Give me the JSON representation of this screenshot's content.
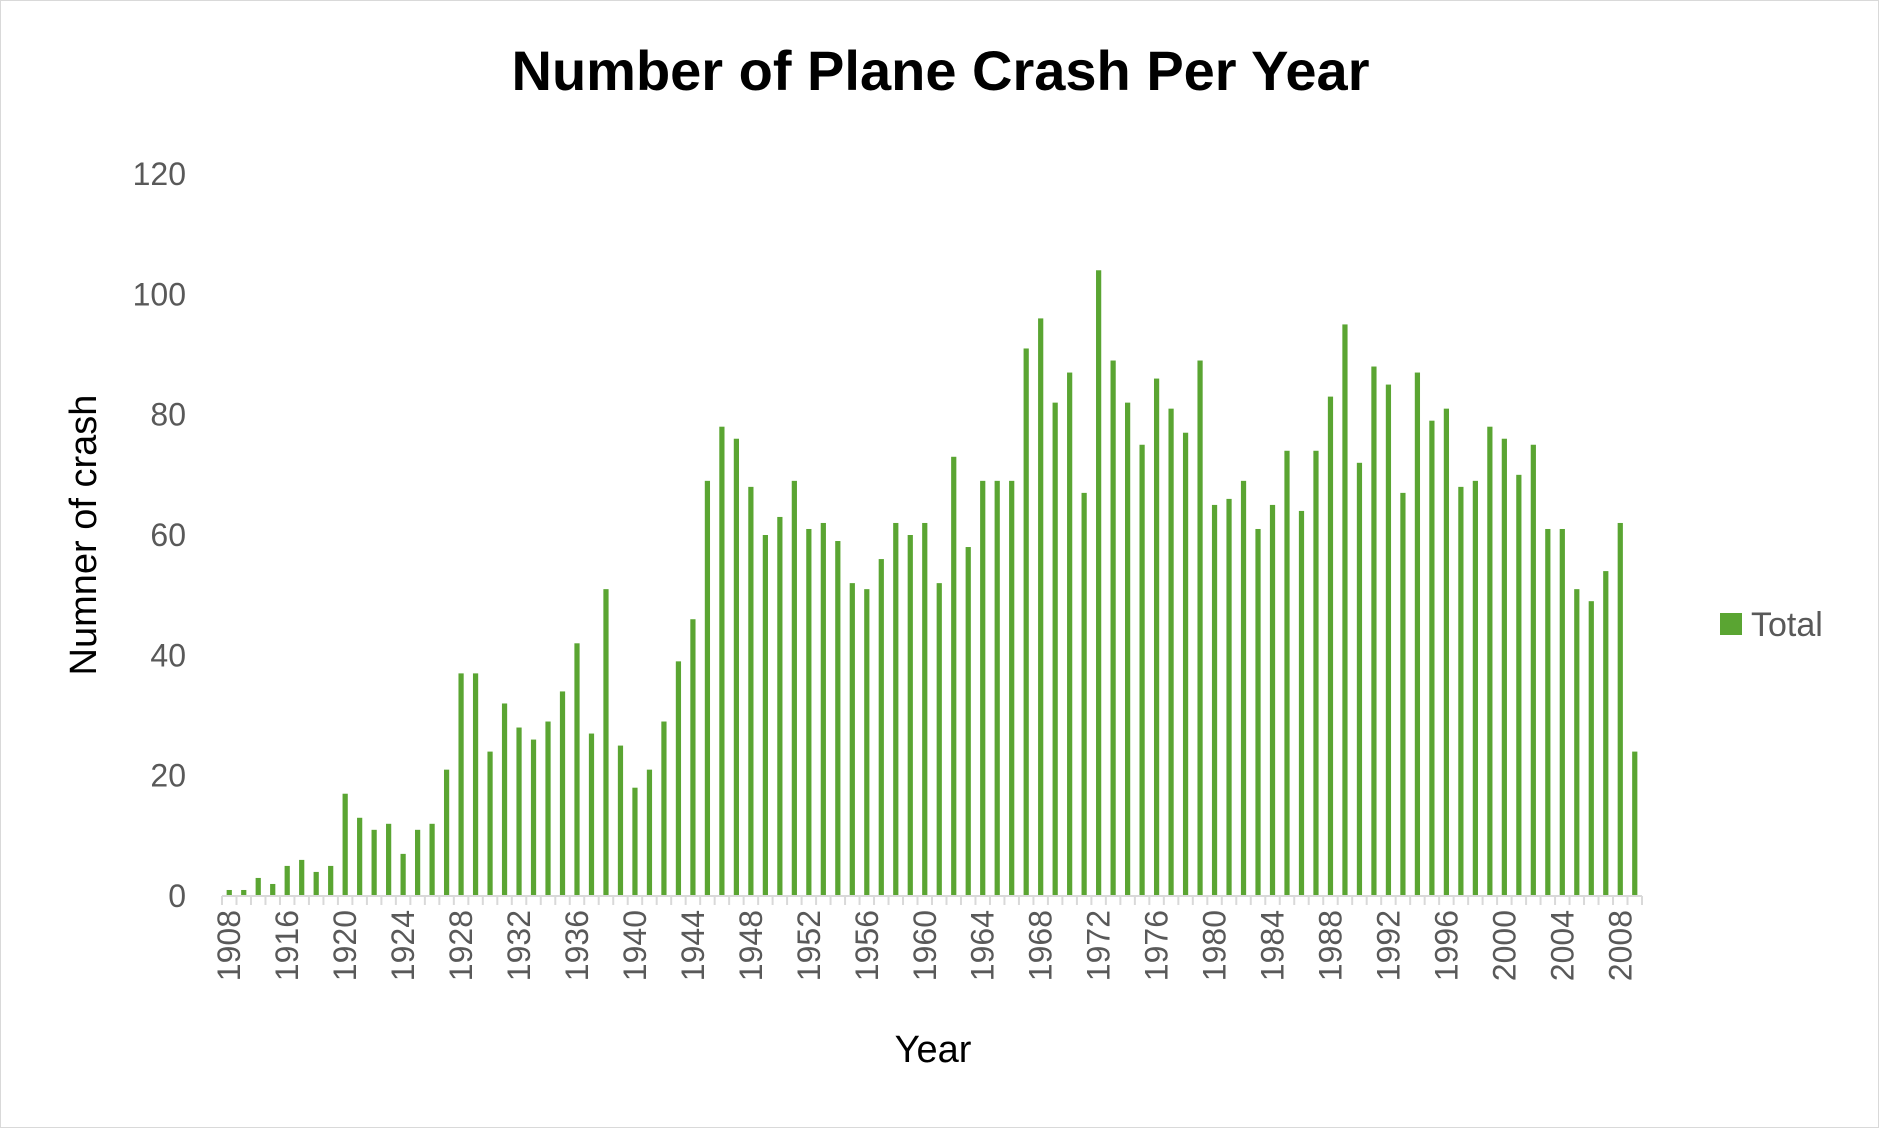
{
  "chart_data": {
    "type": "bar",
    "title": "Number of Plane Crash Per Year",
    "xlabel": "Year",
    "ylabel": "Numner of crash",
    "ylim": [
      0,
      120
    ],
    "yticks": [
      0,
      20,
      40,
      60,
      80,
      100,
      120
    ],
    "xtick_labels": [
      "1908",
      "1916",
      "1920",
      "1924",
      "1928",
      "1932",
      "1936",
      "1940",
      "1944",
      "1948",
      "1952",
      "1956",
      "1960",
      "1964",
      "1968",
      "1972",
      "1976",
      "1980",
      "1984",
      "1988",
      "1992",
      "1996",
      "2000",
      "2004",
      "2008"
    ],
    "legend": {
      "position": "right",
      "entries": [
        "Total"
      ]
    },
    "series": [
      {
        "name": "Total",
        "color": "#5aa532",
        "points": [
          {
            "year": 1908,
            "value": 1
          },
          {
            "year": 1912,
            "value": 1
          },
          {
            "year": 1913,
            "value": 3
          },
          {
            "year": 1915,
            "value": 2
          },
          {
            "year": 1916,
            "value": 5
          },
          {
            "year": 1917,
            "value": 6
          },
          {
            "year": 1918,
            "value": 4
          },
          {
            "year": 1919,
            "value": 5
          },
          {
            "year": 1920,
            "value": 17
          },
          {
            "year": 1921,
            "value": 13
          },
          {
            "year": 1922,
            "value": 11
          },
          {
            "year": 1923,
            "value": 12
          },
          {
            "year": 1924,
            "value": 7
          },
          {
            "year": 1925,
            "value": 11
          },
          {
            "year": 1926,
            "value": 12
          },
          {
            "year": 1927,
            "value": 21
          },
          {
            "year": 1928,
            "value": 37
          },
          {
            "year": 1929,
            "value": 37
          },
          {
            "year": 1930,
            "value": 24
          },
          {
            "year": 1931,
            "value": 32
          },
          {
            "year": 1932,
            "value": 28
          },
          {
            "year": 1933,
            "value": 26
          },
          {
            "year": 1934,
            "value": 29
          },
          {
            "year": 1935,
            "value": 34
          },
          {
            "year": 1936,
            "value": 42
          },
          {
            "year": 1937,
            "value": 27
          },
          {
            "year": 1938,
            "value": 51
          },
          {
            "year": 1939,
            "value": 25
          },
          {
            "year": 1940,
            "value": 18
          },
          {
            "year": 1941,
            "value": 21
          },
          {
            "year": 1942,
            "value": 29
          },
          {
            "year": 1943,
            "value": 39
          },
          {
            "year": 1944,
            "value": 46
          },
          {
            "year": 1945,
            "value": 69
          },
          {
            "year": 1946,
            "value": 78
          },
          {
            "year": 1947,
            "value": 76
          },
          {
            "year": 1948,
            "value": 68
          },
          {
            "year": 1949,
            "value": 60
          },
          {
            "year": 1950,
            "value": 63
          },
          {
            "year": 1951,
            "value": 69
          },
          {
            "year": 1952,
            "value": 61
          },
          {
            "year": 1953,
            "value": 62
          },
          {
            "year": 1954,
            "value": 59
          },
          {
            "year": 1955,
            "value": 52
          },
          {
            "year": 1956,
            "value": 51
          },
          {
            "year": 1957,
            "value": 56
          },
          {
            "year": 1958,
            "value": 62
          },
          {
            "year": 1959,
            "value": 60
          },
          {
            "year": 1960,
            "value": 62
          },
          {
            "year": 1961,
            "value": 52
          },
          {
            "year": 1962,
            "value": 73
          },
          {
            "year": 1963,
            "value": 58
          },
          {
            "year": 1964,
            "value": 69
          },
          {
            "year": 1965,
            "value": 69
          },
          {
            "year": 1966,
            "value": 69
          },
          {
            "year": 1967,
            "value": 91
          },
          {
            "year": 1968,
            "value": 96
          },
          {
            "year": 1969,
            "value": 82
          },
          {
            "year": 1970,
            "value": 87
          },
          {
            "year": 1971,
            "value": 67
          },
          {
            "year": 1972,
            "value": 104
          },
          {
            "year": 1973,
            "value": 89
          },
          {
            "year": 1974,
            "value": 82
          },
          {
            "year": 1975,
            "value": 75
          },
          {
            "year": 1976,
            "value": 86
          },
          {
            "year": 1977,
            "value": 81
          },
          {
            "year": 1978,
            "value": 77
          },
          {
            "year": 1979,
            "value": 89
          },
          {
            "year": 1980,
            "value": 65
          },
          {
            "year": 1981,
            "value": 66
          },
          {
            "year": 1982,
            "value": 69
          },
          {
            "year": 1983,
            "value": 61
          },
          {
            "year": 1984,
            "value": 65
          },
          {
            "year": 1985,
            "value": 74
          },
          {
            "year": 1986,
            "value": 64
          },
          {
            "year": 1987,
            "value": 74
          },
          {
            "year": 1988,
            "value": 83
          },
          {
            "year": 1989,
            "value": 95
          },
          {
            "year": 1990,
            "value": 72
          },
          {
            "year": 1991,
            "value": 88
          },
          {
            "year": 1992,
            "value": 85
          },
          {
            "year": 1993,
            "value": 67
          },
          {
            "year": 1994,
            "value": 87
          },
          {
            "year": 1995,
            "value": 79
          },
          {
            "year": 1996,
            "value": 81
          },
          {
            "year": 1997,
            "value": 68
          },
          {
            "year": 1998,
            "value": 69
          },
          {
            "year": 1999,
            "value": 78
          },
          {
            "year": 2000,
            "value": 76
          },
          {
            "year": 2001,
            "value": 70
          },
          {
            "year": 2002,
            "value": 75
          },
          {
            "year": 2003,
            "value": 61
          },
          {
            "year": 2004,
            "value": 61
          },
          {
            "year": 2005,
            "value": 51
          },
          {
            "year": 2006,
            "value": 49
          },
          {
            "year": 2007,
            "value": 54
          },
          {
            "year": 2008,
            "value": 62
          },
          {
            "year": 2009,
            "value": 24
          }
        ]
      }
    ]
  }
}
